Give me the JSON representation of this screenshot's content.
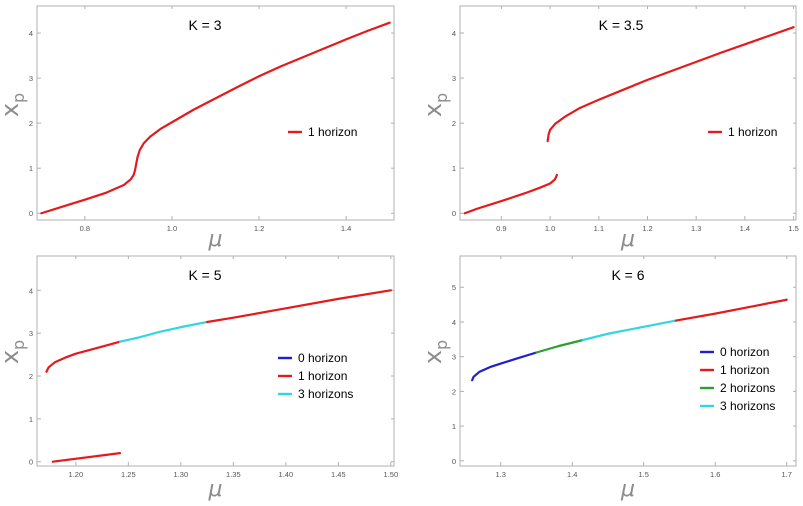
{
  "chart_data": [
    {
      "type": "line",
      "title": "K = 3",
      "xlabel": "μ",
      "ylabel": "x",
      "ylabel_sub": "p",
      "xlim": [
        0.69,
        1.51
      ],
      "ylim": [
        -0.15,
        4.6
      ],
      "xticks": [
        0.8,
        1.0,
        1.2,
        1.4
      ],
      "xtick_labels": [
        "0.8",
        "1.0",
        "1.2",
        "1.4"
      ],
      "yticks": [
        0,
        1,
        2,
        3,
        4
      ],
      "ytick_labels": [
        "0",
        "1",
        "2",
        "3",
        "4"
      ],
      "legend_position": "right",
      "legend": [
        {
          "name": "1 horizon",
          "color": "#e41a1c"
        }
      ],
      "series": [
        {
          "name": "1 horizon",
          "color": "#e41a1c",
          "points": [
            [
              0.7,
              0
            ],
            [
              0.75,
              0.15
            ],
            [
              0.8,
              0.3
            ],
            [
              0.85,
              0.46
            ],
            [
              0.89,
              0.63
            ],
            [
              0.905,
              0.75
            ],
            [
              0.912,
              0.85
            ],
            [
              0.915,
              0.95
            ],
            [
              0.918,
              1.1
            ],
            [
              0.921,
              1.25
            ],
            [
              0.926,
              1.4
            ],
            [
              0.935,
              1.55
            ],
            [
              0.95,
              1.7
            ],
            [
              0.975,
              1.88
            ],
            [
              1.0,
              2.02
            ],
            [
              1.05,
              2.3
            ],
            [
              1.1,
              2.55
            ],
            [
              1.15,
              2.8
            ],
            [
              1.2,
              3.04
            ],
            [
              1.25,
              3.26
            ],
            [
              1.3,
              3.46
            ],
            [
              1.35,
              3.66
            ],
            [
              1.4,
              3.86
            ],
            [
              1.45,
              4.05
            ],
            [
              1.5,
              4.23
            ]
          ]
        }
      ]
    },
    {
      "type": "line",
      "title": "K = 3.5",
      "xlabel": "μ",
      "ylabel": "x",
      "ylabel_sub": "p",
      "xlim": [
        0.815,
        1.505
      ],
      "ylim": [
        -0.15,
        4.6
      ],
      "xticks": [
        0.9,
        1.0,
        1.1,
        1.2,
        1.3,
        1.4,
        1.5
      ],
      "xtick_labels": [
        "0.9",
        "1.0",
        "1.1",
        "1.2",
        "1.3",
        "1.4",
        "1.5"
      ],
      "yticks": [
        0,
        1,
        2,
        3,
        4
      ],
      "ytick_labels": [
        "0",
        "1",
        "2",
        "3",
        "4"
      ],
      "legend_position": "right",
      "legend": [
        {
          "name": "1 horizon",
          "color": "#e41a1c"
        }
      ],
      "series": [
        {
          "name": "1 horizon",
          "color": "#e41a1c",
          "points": [
            [
              0.825,
              0
            ],
            [
              0.85,
              0.1
            ],
            [
              0.9,
              0.27
            ],
            [
              0.95,
              0.45
            ],
            [
              0.98,
              0.57
            ],
            [
              1.0,
              0.66
            ],
            [
              1.01,
              0.75
            ],
            [
              1.014,
              0.85
            ]
          ]
        },
        {
          "name": "1 horizon",
          "color": "#e41a1c",
          "points": [
            [
              0.995,
              1.6
            ],
            [
              0.997,
              1.75
            ],
            [
              1.0,
              1.85
            ],
            [
              1.01,
              1.98
            ],
            [
              1.03,
              2.14
            ],
            [
              1.06,
              2.33
            ],
            [
              1.1,
              2.52
            ],
            [
              1.15,
              2.74
            ],
            [
              1.2,
              2.96
            ],
            [
              1.25,
              3.16
            ],
            [
              1.3,
              3.36
            ],
            [
              1.35,
              3.56
            ],
            [
              1.4,
              3.75
            ],
            [
              1.45,
              3.94
            ],
            [
              1.5,
              4.13
            ]
          ]
        }
      ]
    },
    {
      "type": "line",
      "title": "K = 5",
      "xlabel": "μ",
      "ylabel": "x",
      "ylabel_sub": "p",
      "xlim": [
        1.163,
        1.503
      ],
      "ylim": [
        -0.1,
        4.8
      ],
      "xticks": [
        1.2,
        1.25,
        1.3,
        1.35,
        1.4,
        1.45,
        1.5
      ],
      "xtick_labels": [
        "1.20",
        "1.25",
        "1.30",
        "1.35",
        "1.40",
        "1.45",
        "1.50"
      ],
      "yticks": [
        0,
        1,
        2,
        3,
        4
      ],
      "ytick_labels": [
        "0",
        "1",
        "2",
        "3",
        "4"
      ],
      "legend_position": "right",
      "legend": [
        {
          "name": "0 horizon",
          "color": "#1f1fcc"
        },
        {
          "name": "1 horizon",
          "color": "#e41a1c"
        },
        {
          "name": "3 horizons",
          "color": "#33d6e0"
        }
      ],
      "series": [
        {
          "name": "1 horizon",
          "color": "#e41a1c",
          "points": [
            [
              1.172,
              2.1
            ],
            [
              1.174,
              2.2
            ],
            [
              1.18,
              2.32
            ],
            [
              1.19,
              2.43
            ],
            [
              1.2,
              2.52
            ],
            [
              1.215,
              2.62
            ],
            [
              1.23,
              2.72
            ],
            [
              1.242,
              2.8
            ]
          ]
        },
        {
          "name": "3 horizons",
          "color": "#33d6e0",
          "points": [
            [
              1.242,
              2.8
            ],
            [
              1.26,
              2.9
            ],
            [
              1.28,
              3.03
            ],
            [
              1.3,
              3.14
            ],
            [
              1.325,
              3.26
            ]
          ]
        },
        {
          "name": "1 horizon",
          "color": "#e41a1c",
          "points": [
            [
              1.325,
              3.26
            ],
            [
              1.35,
              3.36
            ],
            [
              1.4,
              3.58
            ],
            [
              1.45,
              3.8
            ],
            [
              1.5,
              4.0
            ]
          ]
        },
        {
          "name": "1 horizon",
          "color": "#e41a1c",
          "points": [
            [
              1.178,
              0.0
            ],
            [
              1.242,
              0.2
            ]
          ]
        }
      ]
    },
    {
      "type": "line",
      "title": "K = 6",
      "xlabel": "μ",
      "ylabel": "x",
      "ylabel_sub": "p",
      "xlim": [
        1.243,
        1.713
      ],
      "ylim": [
        -0.15,
        5.9
      ],
      "xticks": [
        1.3,
        1.4,
        1.5,
        1.6,
        1.7
      ],
      "xtick_labels": [
        "1.3",
        "1.4",
        "1.5",
        "1.6",
        "1.7"
      ],
      "yticks": [
        0,
        1,
        2,
        3,
        4,
        5
      ],
      "ytick_labels": [
        "0",
        "1",
        "2",
        "3",
        "4",
        "5"
      ],
      "legend_position": "right",
      "legend": [
        {
          "name": "0 horizon",
          "color": "#1f1fcc"
        },
        {
          "name": "1 horizon",
          "color": "#e41a1c"
        },
        {
          "name": "2 horizons",
          "color": "#2ca02c"
        },
        {
          "name": "3 horizons",
          "color": "#33d6e0"
        }
      ],
      "series": [
        {
          "name": "0 horizon",
          "color": "#1f1fcc",
          "points": [
            [
              1.26,
              2.32
            ],
            [
              1.262,
              2.42
            ],
            [
              1.27,
              2.56
            ],
            [
              1.285,
              2.7
            ],
            [
              1.3,
              2.8
            ],
            [
              1.32,
              2.93
            ],
            [
              1.35,
              3.12
            ]
          ]
        },
        {
          "name": "2 horizons",
          "color": "#2ca02c",
          "points": [
            [
              1.35,
              3.12
            ],
            [
              1.38,
              3.3
            ],
            [
              1.415,
              3.48
            ]
          ]
        },
        {
          "name": "3 horizons",
          "color": "#33d6e0",
          "points": [
            [
              1.415,
              3.48
            ],
            [
              1.45,
              3.66
            ],
            [
              1.5,
              3.86
            ],
            [
              1.545,
              4.04
            ]
          ]
        },
        {
          "name": "1 horizon",
          "color": "#e41a1c",
          "points": [
            [
              1.545,
              4.04
            ],
            [
              1.6,
              4.24
            ],
            [
              1.65,
              4.44
            ],
            [
              1.7,
              4.64
            ]
          ]
        }
      ]
    }
  ]
}
